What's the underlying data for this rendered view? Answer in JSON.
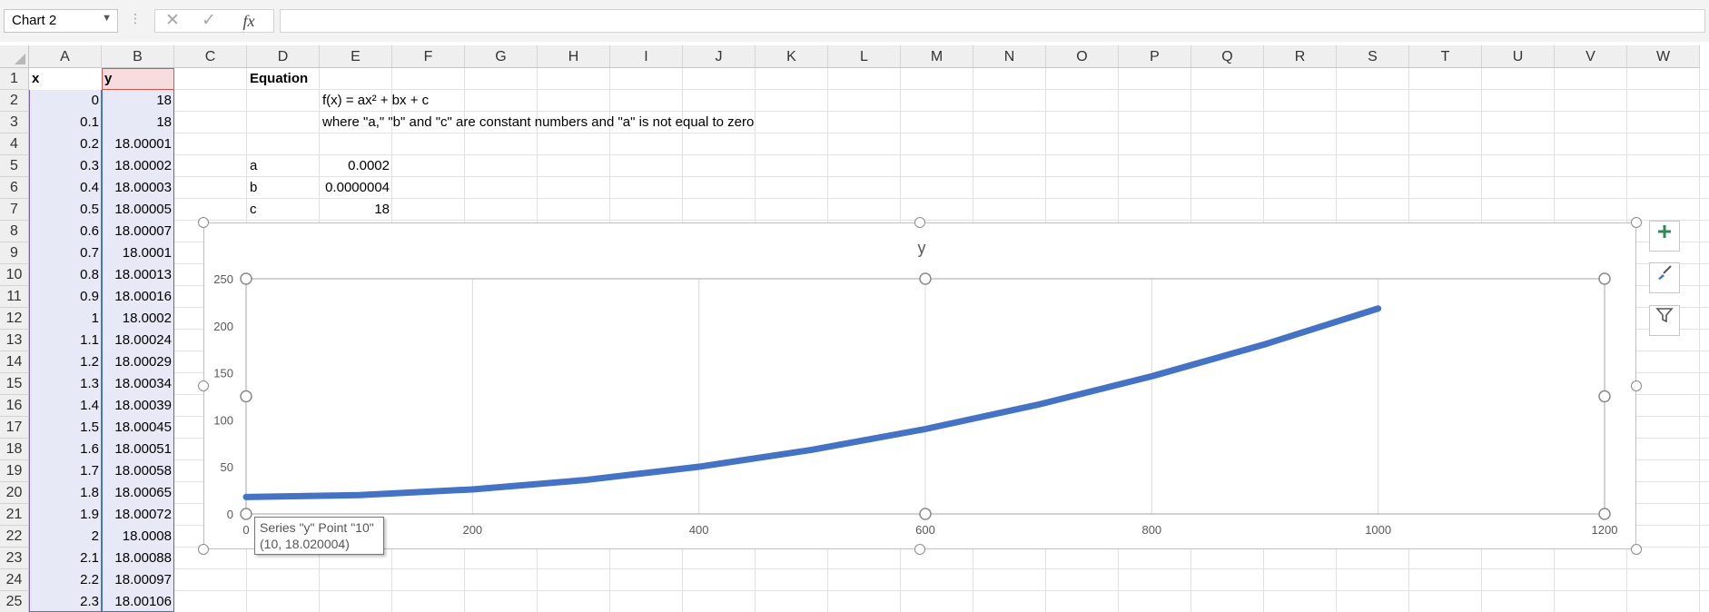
{
  "formula_bar": {
    "name_box": "Chart 2",
    "cancel_icon": "✕",
    "enter_icon": "✓",
    "fx_label": "fx",
    "formula": ""
  },
  "columns": [
    "A",
    "B",
    "C",
    "D",
    "E",
    "F",
    "G",
    "H",
    "I",
    "J",
    "K",
    "L",
    "M",
    "N",
    "O",
    "P",
    "Q",
    "R",
    "S",
    "T",
    "U",
    "V",
    "W"
  ],
  "rows": [
    "1",
    "2",
    "3",
    "4",
    "5",
    "6",
    "7",
    "8",
    "9",
    "10",
    "11",
    "12",
    "13",
    "14",
    "15",
    "16",
    "17",
    "18",
    "19",
    "20",
    "21",
    "22",
    "23",
    "24",
    "25"
  ],
  "sheet": {
    "a1": "x",
    "b1": "y",
    "x_values": [
      "0",
      "0.1",
      "0.2",
      "0.3",
      "0.4",
      "0.5",
      "0.6",
      "0.7",
      "0.8",
      "0.9",
      "1",
      "1.1",
      "1.2",
      "1.3",
      "1.4",
      "1.5",
      "1.6",
      "1.7",
      "1.8",
      "1.9",
      "2",
      "2.1",
      "2.2",
      "2.3"
    ],
    "y_values": [
      "18",
      "18",
      "18.00001",
      "18.00002",
      "18.00003",
      "18.00005",
      "18.00007",
      "18.0001",
      "18.00013",
      "18.00016",
      "18.0002",
      "18.00024",
      "18.00029",
      "18.00034",
      "18.00039",
      "18.00045",
      "18.00051",
      "18.00058",
      "18.00065",
      "18.00072",
      "18.0008",
      "18.00088",
      "18.00097",
      "18.00106"
    ],
    "d1": "Equation",
    "e2": "f(x) = ax² + bx + c",
    "e3": "where \"a,\" \"b\" and \"c\" are constant numbers and \"a\" is not equal to zero",
    "d5": "a",
    "e5": "0.0002",
    "d6": "b",
    "e6": "0.0000004",
    "d7": "c",
    "e7": "18"
  },
  "chart_data": {
    "type": "line",
    "title": "y",
    "xlim": [
      0,
      1200
    ],
    "ylim": [
      0,
      250
    ],
    "x_ticks": [
      "0",
      "200",
      "400",
      "600",
      "800",
      "1000",
      "1200"
    ],
    "y_ticks": [
      "0",
      "50",
      "100",
      "150",
      "200",
      "250"
    ],
    "series": [
      {
        "name": "y",
        "color": "#4472c4",
        "x": [
          0,
          100,
          200,
          300,
          400,
          500,
          600,
          700,
          800,
          900,
          1000
        ],
        "y": [
          18,
          20.04,
          26.08,
          36.12,
          50.16,
          68.2,
          90.24,
          116.28,
          146.32,
          180.36,
          218.4
        ]
      }
    ],
    "grid": true
  },
  "tooltip": {
    "line1": "Series \"y\" Point \"10\"",
    "line2": "(10, 18.020004)"
  },
  "chart_tools": {
    "elements_icon": "plus-icon",
    "styles_icon": "brush-icon",
    "filter_icon": "funnel-icon"
  }
}
